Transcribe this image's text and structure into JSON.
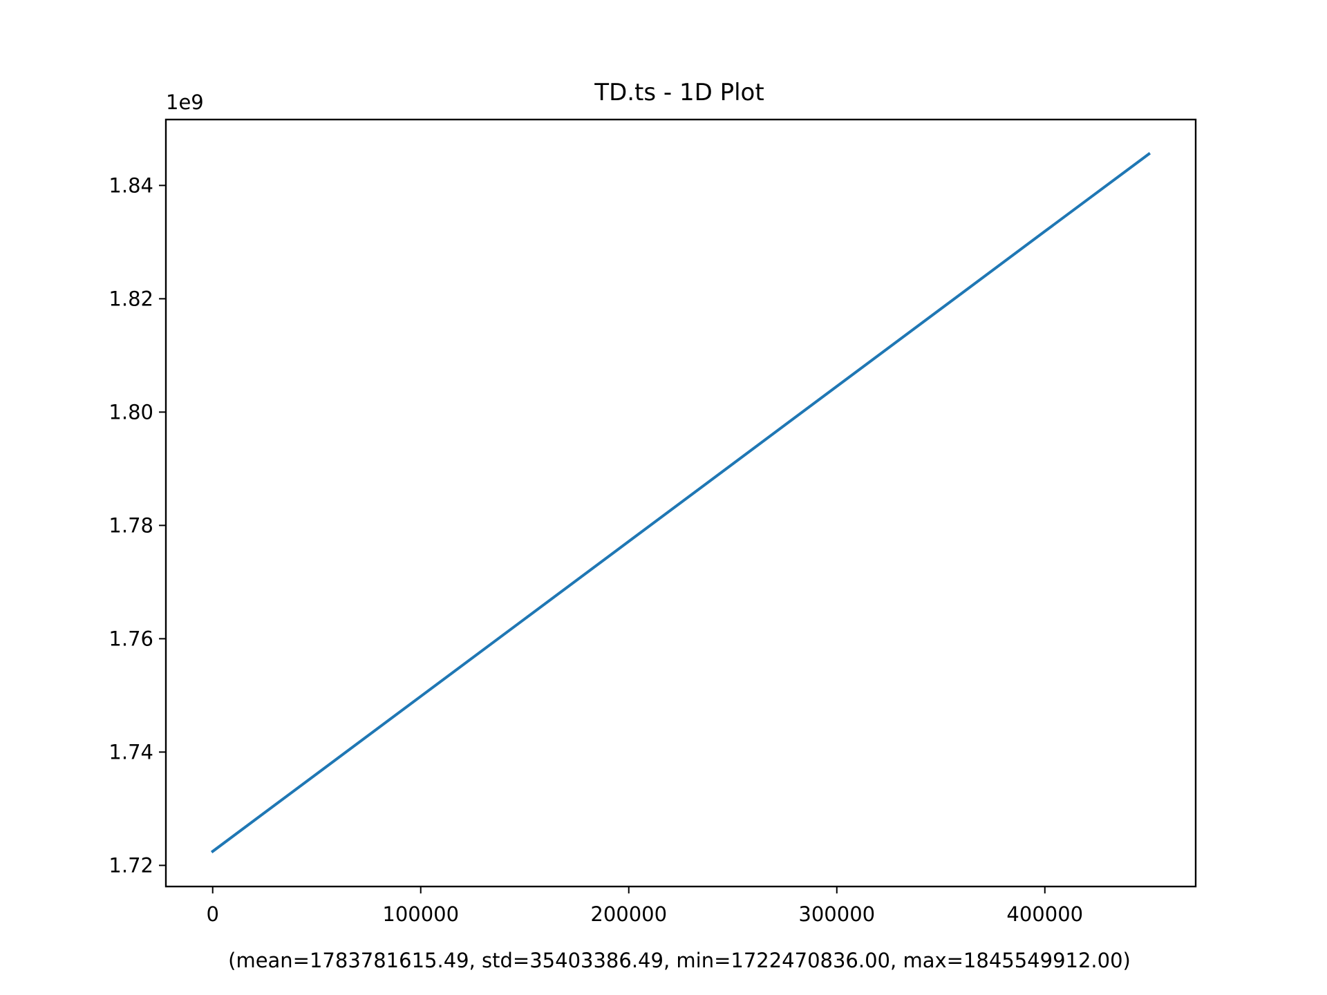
{
  "chart_data": {
    "type": "line",
    "title": "TD.ts - 1D Plot",
    "xlabel": "(mean=1783781615.49, std=35403386.49, min=1722470836.00, max=1845549912.00)",
    "ylabel": "",
    "y_offset_label": "1e9",
    "xlim": [
      -22500,
      472500
    ],
    "ylim": [
      1.71627,
      1.85163
    ],
    "x_ticks": [
      {
        "value": 0,
        "label": "0"
      },
      {
        "value": 100000,
        "label": "100000"
      },
      {
        "value": 200000,
        "label": "200000"
      },
      {
        "value": 300000,
        "label": "300000"
      },
      {
        "value": 400000,
        "label": "400000"
      }
    ],
    "y_ticks": [
      {
        "value": 1.72,
        "label": "1.72"
      },
      {
        "value": 1.74,
        "label": "1.74"
      },
      {
        "value": 1.76,
        "label": "1.76"
      },
      {
        "value": 1.78,
        "label": "1.78"
      },
      {
        "value": 1.8,
        "label": "1.80"
      },
      {
        "value": 1.82,
        "label": "1.82"
      },
      {
        "value": 1.84,
        "label": "1.84"
      }
    ],
    "grid": false,
    "series": [
      {
        "color": "#1f77b4",
        "x": [
          0,
          50000,
          100000,
          150000,
          200000,
          250000,
          300000,
          350000,
          400000,
          450000
        ],
        "y": [
          1.72247,
          1.73615,
          1.74983,
          1.7635,
          1.77718,
          1.79086,
          1.80454,
          1.81822,
          1.8319,
          1.84555
        ]
      }
    ]
  }
}
